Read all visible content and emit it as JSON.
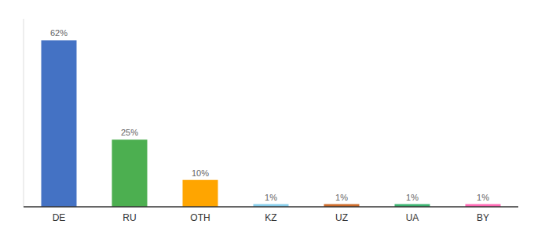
{
  "chart_data": {
    "type": "bar",
    "categories": [
      "DE",
      "RU",
      "OTH",
      "KZ",
      "UZ",
      "UA",
      "BY"
    ],
    "values": [
      62,
      25,
      10,
      1,
      1,
      1,
      1
    ],
    "value_labels": [
      "62%",
      "25%",
      "10%",
      "1%",
      "1%",
      "1%",
      "1%"
    ],
    "colors": [
      "#4472C4",
      "#4CAF50",
      "#FFA500",
      "#87CEEB",
      "#CD6B2B",
      "#3CB371",
      "#FF69B4"
    ],
    "ylim": [
      0,
      70
    ],
    "data_labels": true,
    "tick_labels": "x",
    "grid": false
  }
}
